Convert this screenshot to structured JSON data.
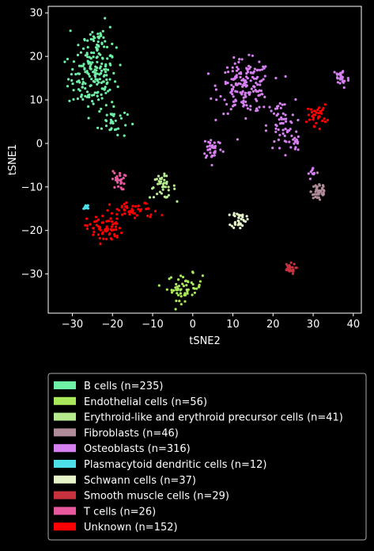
{
  "chart_data": {
    "type": "scatter",
    "title": "",
    "xlabel": "tSNE2",
    "ylabel": "tSNE1",
    "xlim": [
      -36,
      42
    ],
    "ylim": [
      -39,
      31.5
    ],
    "xticks": [
      -30,
      -20,
      -10,
      0,
      10,
      20,
      30,
      40
    ],
    "yticks": [
      -30,
      -20,
      -10,
      0,
      10,
      20,
      30
    ],
    "grid": false,
    "legend_position": "below",
    "background": "#000000",
    "series": [
      {
        "name": "B cells (n=235)",
        "color": "#6ef0a7",
        "clusters": [
          {
            "cx": -25,
            "cy": 15,
            "sx": 3.0,
            "sy": 3.5,
            "n": 150
          },
          {
            "cx": -23.5,
            "cy": 23,
            "sx": 2.0,
            "sy": 2.5,
            "n": 50
          },
          {
            "cx": -20,
            "cy": 5,
            "sx": 1.8,
            "sy": 2.0,
            "n": 35
          }
        ]
      },
      {
        "name": "Endothelial cells (n=56)",
        "color": "#a8e85a",
        "clusters": [
          {
            "cx": -2,
            "cy": -33,
            "sx": 2.2,
            "sy": 1.5,
            "n": 56
          }
        ]
      },
      {
        "name": "Erythroid-like and erythroid precursor cells (n=41)",
        "color": "#b6ec8e",
        "clusters": [
          {
            "cx": -7.5,
            "cy": -10,
            "sx": 1.6,
            "sy": 1.3,
            "n": 41
          }
        ]
      },
      {
        "name": "Fibroblasts (n=46)",
        "color": "#b08b9a",
        "clusters": [
          {
            "cx": 31.5,
            "cy": -11,
            "sx": 1.0,
            "sy": 1.3,
            "n": 46
          }
        ]
      },
      {
        "name": "Osteoblasts (n=316)",
        "color": "#d57ff0",
        "clusters": [
          {
            "cx": 13,
            "cy": 13,
            "sx": 3.2,
            "sy": 3.0,
            "n": 170
          },
          {
            "cx": 22,
            "cy": 4,
            "sx": 1.8,
            "sy": 3.0,
            "n": 55
          },
          {
            "cx": 37,
            "cy": 15,
            "sx": 1.0,
            "sy": 1.2,
            "n": 30
          },
          {
            "cx": 5,
            "cy": -1,
            "sx": 1.2,
            "sy": 1.4,
            "n": 36
          },
          {
            "cx": 30,
            "cy": -7,
            "sx": 0.6,
            "sy": 0.7,
            "n": 10
          },
          {
            "cx": 25.5,
            "cy": 0,
            "sx": 0.5,
            "sy": 1.5,
            "n": 15
          }
        ]
      },
      {
        "name": "Plasmacytoid dendritic cells (n=12)",
        "color": "#4de0ea",
        "clusters": [
          {
            "cx": -26.5,
            "cy": -14.5,
            "sx": 0.4,
            "sy": 0.3,
            "n": 12
          }
        ]
      },
      {
        "name": "Schwann cells (n=37)",
        "color": "#e6f2c8",
        "clusters": [
          {
            "cx": 11.5,
            "cy": -17.5,
            "sx": 0.9,
            "sy": 1.0,
            "n": 37
          }
        ]
      },
      {
        "name": "Smooth muscle cells (n=29)",
        "color": "#c8323e",
        "clusters": [
          {
            "cx": 24,
            "cy": -28.8,
            "sx": 0.8,
            "sy": 0.6,
            "n": 29
          }
        ]
      },
      {
        "name": "T cells (n=26)",
        "color": "#e8589e",
        "clusters": [
          {
            "cx": -18.5,
            "cy": -8.5,
            "sx": 0.8,
            "sy": 1.1,
            "n": 26
          }
        ]
      },
      {
        "name": "Unknown (n=152)",
        "color": "#ff0000",
        "clusters": [
          {
            "cx": -22,
            "cy": -19.5,
            "sx": 2.2,
            "sy": 1.6,
            "n": 70
          },
          {
            "cx": -14.5,
            "cy": -15.5,
            "sx": 3.0,
            "sy": 1.0,
            "n": 47
          },
          {
            "cx": 31,
            "cy": 6.5,
            "sx": 1.2,
            "sy": 1.2,
            "n": 35
          }
        ]
      }
    ]
  }
}
